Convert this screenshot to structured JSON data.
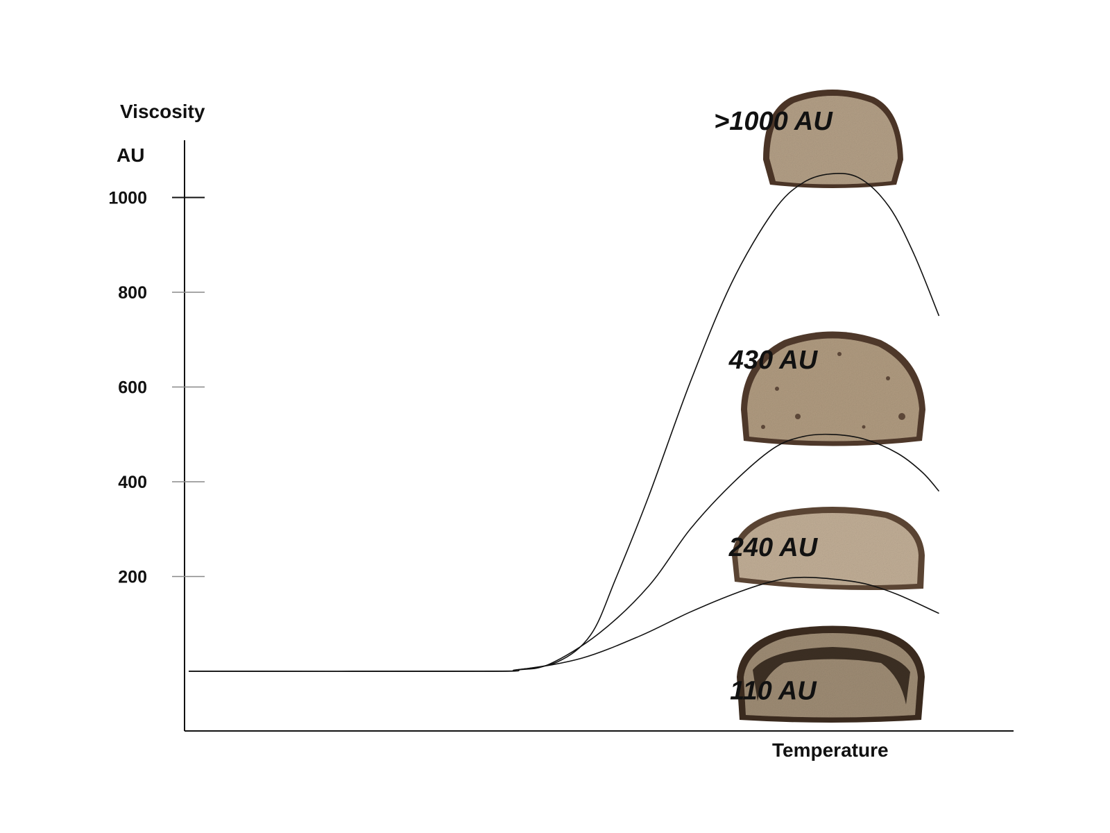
{
  "chart_data": {
    "type": "line",
    "ylabel": "Viscosity",
    "yunit": "AU",
    "xlabel": "Temperature",
    "ylim": [
      -120,
      1100
    ],
    "xlim": [
      0,
      1
    ],
    "yticks": [
      {
        "value": 1000,
        "label": "1000"
      },
      {
        "value": 800,
        "label": "800"
      },
      {
        "value": 600,
        "label": "600"
      },
      {
        "value": 400,
        "label": "400"
      },
      {
        "value": 200,
        "label": "200"
      }
    ],
    "grid": false,
    "series": [
      {
        "points": [
          [
            0.005,
            0
          ],
          [
            0.36,
            0
          ],
          [
            0.4,
            3
          ],
          [
            0.45,
            20
          ],
          [
            0.49,
            77
          ],
          [
            0.52,
            195
          ],
          [
            0.56,
            370
          ],
          [
            0.61,
            610
          ],
          [
            0.66,
            820
          ],
          [
            0.71,
            970
          ],
          [
            0.745,
            1030
          ],
          [
            0.78,
            1050
          ],
          [
            0.815,
            1040
          ],
          [
            0.85,
            980
          ],
          [
            0.88,
            880
          ],
          [
            0.91,
            750
          ]
        ]
      },
      {
        "points": [
          [
            0.005,
            0
          ],
          [
            0.36,
            0
          ],
          [
            0.4,
            3
          ],
          [
            0.44,
            15
          ],
          [
            0.5,
            80
          ],
          [
            0.56,
            180
          ],
          [
            0.61,
            300
          ],
          [
            0.66,
            395
          ],
          [
            0.71,
            470
          ],
          [
            0.745,
            495
          ],
          [
            0.78,
            500
          ],
          [
            0.82,
            490
          ],
          [
            0.86,
            460
          ],
          [
            0.89,
            420
          ],
          [
            0.91,
            380
          ]
        ]
      },
      {
        "points": [
          [
            0.005,
            0
          ],
          [
            0.36,
            0
          ],
          [
            0.41,
            5
          ],
          [
            0.48,
            28
          ],
          [
            0.55,
            75
          ],
          [
            0.61,
            125
          ],
          [
            0.67,
            168
          ],
          [
            0.71,
            190
          ],
          [
            0.74,
            198
          ],
          [
            0.78,
            195
          ],
          [
            0.82,
            185
          ],
          [
            0.86,
            162
          ],
          [
            0.91,
            122
          ]
        ]
      }
    ],
    "annotations": [
      {
        "text": ">1000 AU",
        "x": 0.71,
        "y": 1162
      },
      {
        "text": "430 AU",
        "x": 0.71,
        "y": 658
      },
      {
        "text": "240 AU",
        "x": 0.71,
        "y": 262
      },
      {
        "text": "110 AU",
        "x": 0.71,
        "y": -40
      }
    ]
  },
  "loaf_images": [
    {
      "name": "loaf-1000-image",
      "colors": {
        "crust": "#4a3426",
        "crumb": "#b39f86",
        "pore": "#5a4636"
      }
    },
    {
      "name": "loaf-430-image",
      "colors": {
        "crust": "#4e382a",
        "crumb": "#b09b80",
        "pore": "#5c4738"
      }
    },
    {
      "name": "loaf-240-image",
      "colors": {
        "crust": "#5a4433",
        "crumb": "#c1ae96",
        "pore": "#7a6652"
      }
    },
    {
      "name": "loaf-110-image",
      "colors": {
        "crust": "#3a2a1e",
        "crumb": "#9e8c74",
        "pore": "#2a1e15"
      }
    }
  ]
}
